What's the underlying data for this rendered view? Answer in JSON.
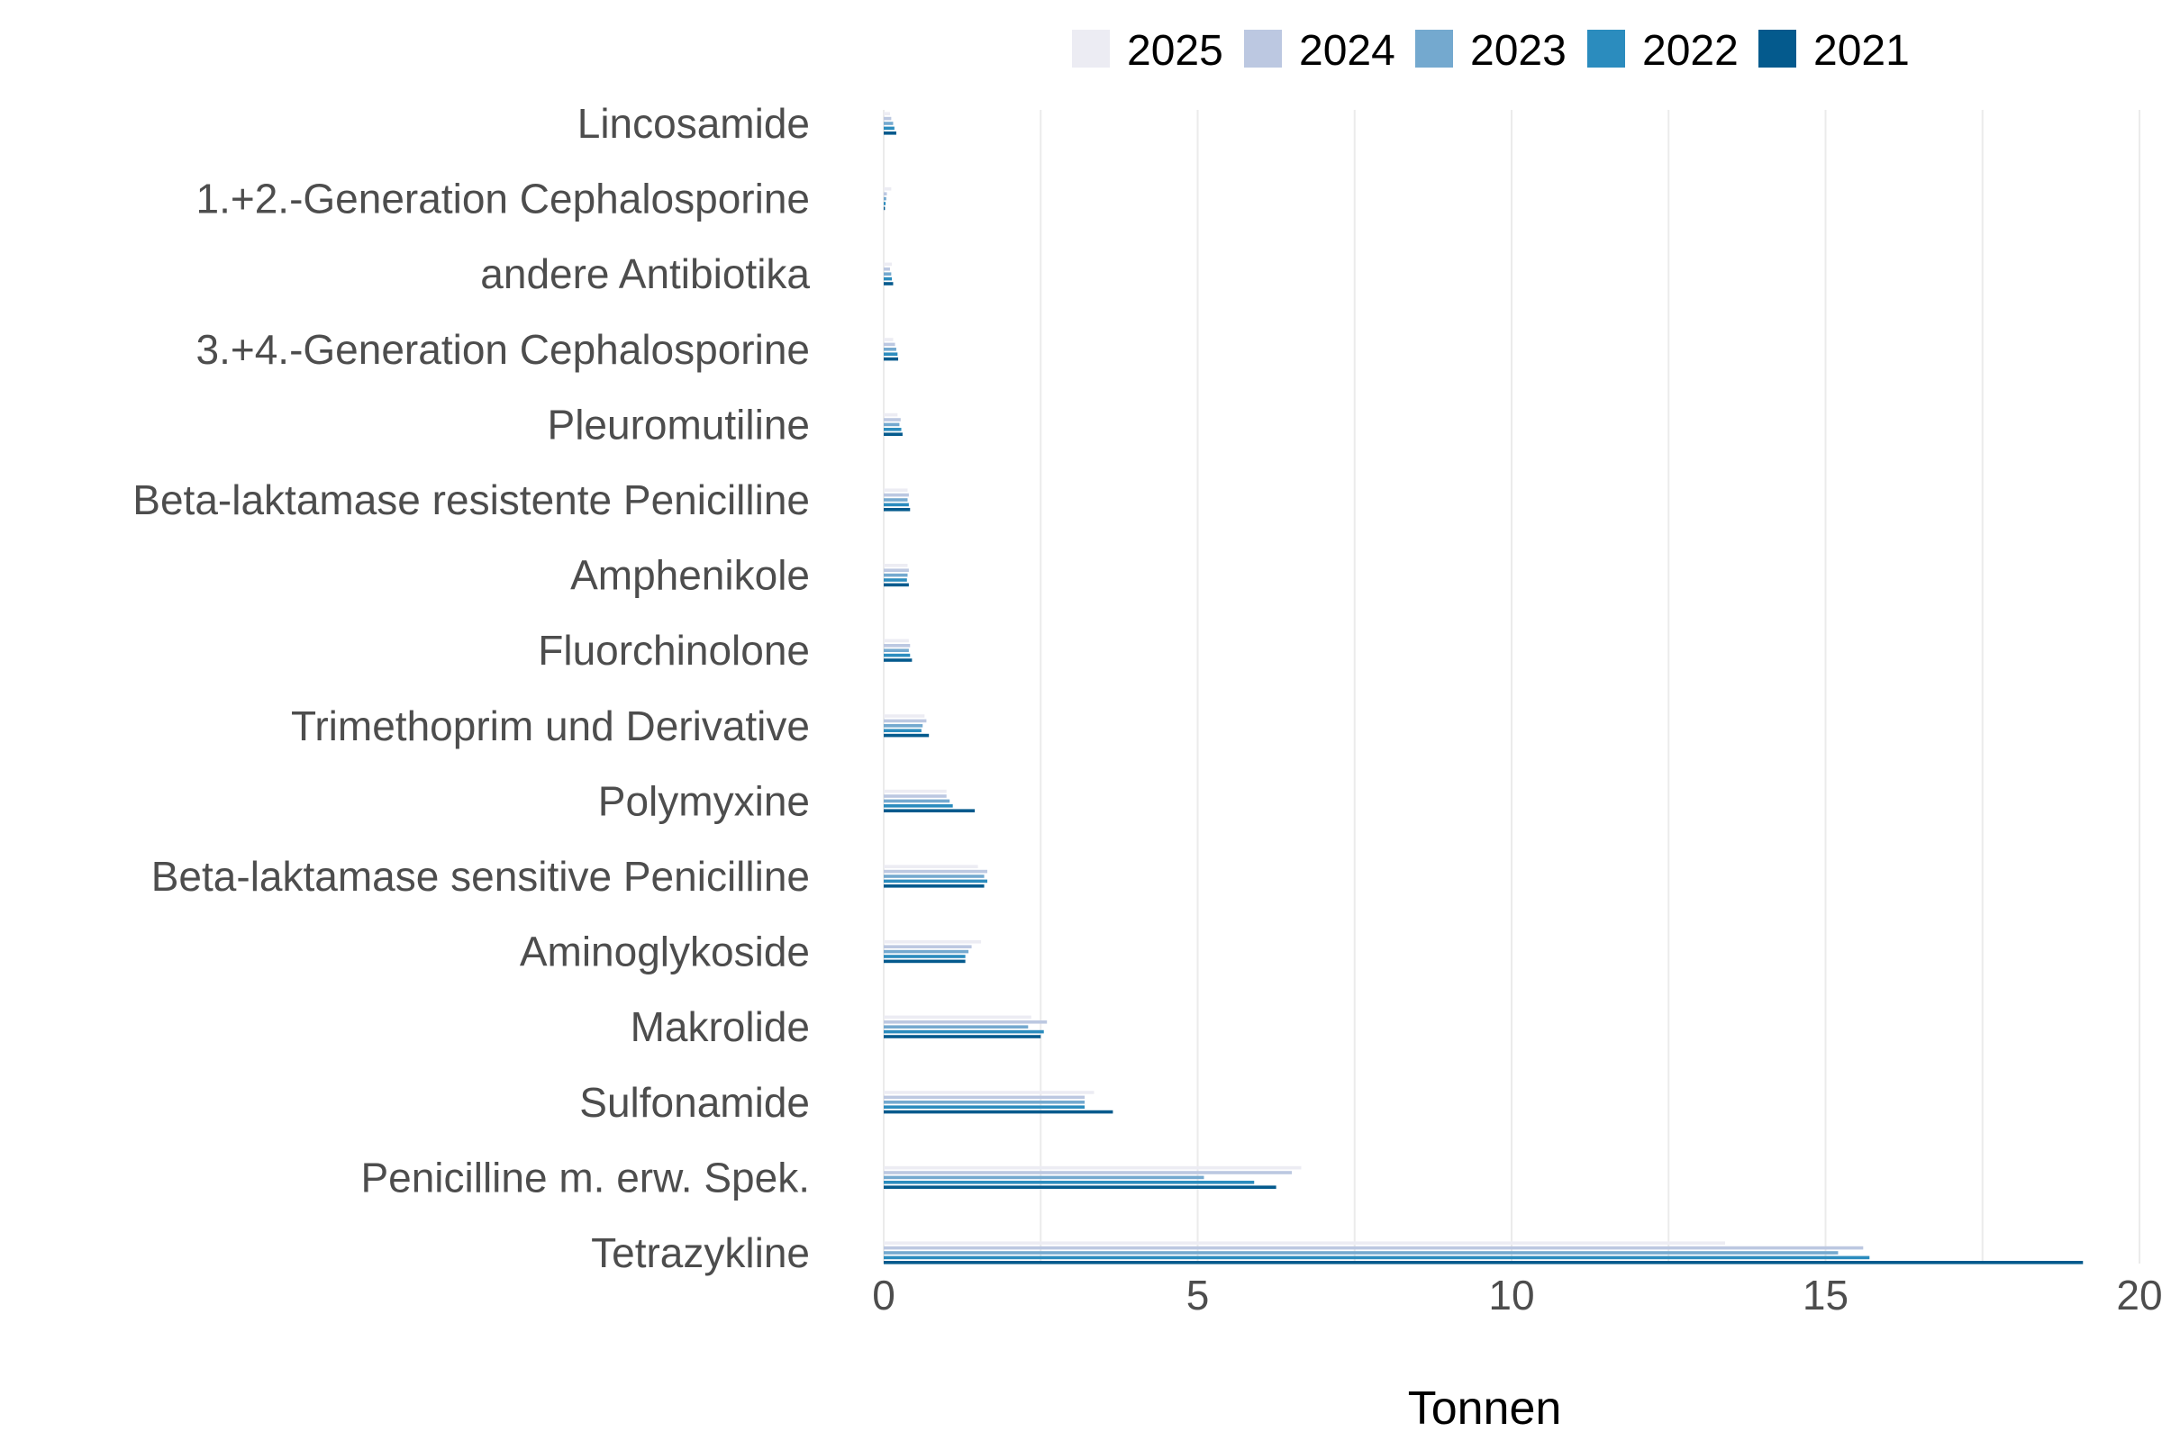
{
  "chart_data": {
    "type": "bar",
    "orientation": "horizontal",
    "categories": [
      "Lincosamide",
      "1.+2.-Generation Cephalosporine",
      "andere Antibiotika",
      "3.+4.-Generation Cephalosporine",
      "Pleuromutiline",
      "Beta-laktamase resistente Penicilline",
      "Amphenikole",
      "Fluorchinolone",
      "Trimethoprim und Derivative",
      "Polymyxine",
      "Beta-laktamase sensitive Penicilline",
      "Aminoglykoside",
      "Makrolide",
      "Sulfonamide",
      "Penicilline m. erw. Spek.",
      "Tetrazykline"
    ],
    "series": [
      {
        "name": "2025",
        "color": "#ececf3",
        "values": [
          0.1,
          0.12,
          0.13,
          0.15,
          0.22,
          0.38,
          0.38,
          0.4,
          0.65,
          1.0,
          1.5,
          1.55,
          2.35,
          3.35,
          6.65,
          13.4
        ]
      },
      {
        "name": "2024",
        "color": "#bcc8e1",
        "values": [
          0.12,
          0.05,
          0.1,
          0.18,
          0.27,
          0.4,
          0.4,
          0.42,
          0.68,
          1.0,
          1.65,
          1.4,
          2.6,
          3.2,
          6.5,
          15.6
        ]
      },
      {
        "name": "2023",
        "color": "#74a9cf",
        "values": [
          0.15,
          0.04,
          0.12,
          0.2,
          0.25,
          0.38,
          0.38,
          0.4,
          0.62,
          1.05,
          1.6,
          1.35,
          2.3,
          3.2,
          5.1,
          15.2
        ]
      },
      {
        "name": "2022",
        "color": "#2b8cbe",
        "values": [
          0.17,
          0.03,
          0.13,
          0.22,
          0.28,
          0.4,
          0.37,
          0.42,
          0.6,
          1.1,
          1.65,
          1.3,
          2.55,
          3.2,
          5.9,
          15.7
        ]
      },
      {
        "name": "2021",
        "color": "#045a8d",
        "values": [
          0.2,
          0.02,
          0.15,
          0.23,
          0.3,
          0.42,
          0.4,
          0.45,
          0.72,
          1.45,
          1.6,
          1.3,
          2.5,
          3.65,
          6.25,
          19.1
        ]
      }
    ],
    "xlabel": "Tonnen",
    "xlim": [
      0,
      20
    ],
    "xticks": [
      0,
      5,
      10,
      15,
      20
    ],
    "grid": "vertical major and minor",
    "legend_placement": "top"
  }
}
